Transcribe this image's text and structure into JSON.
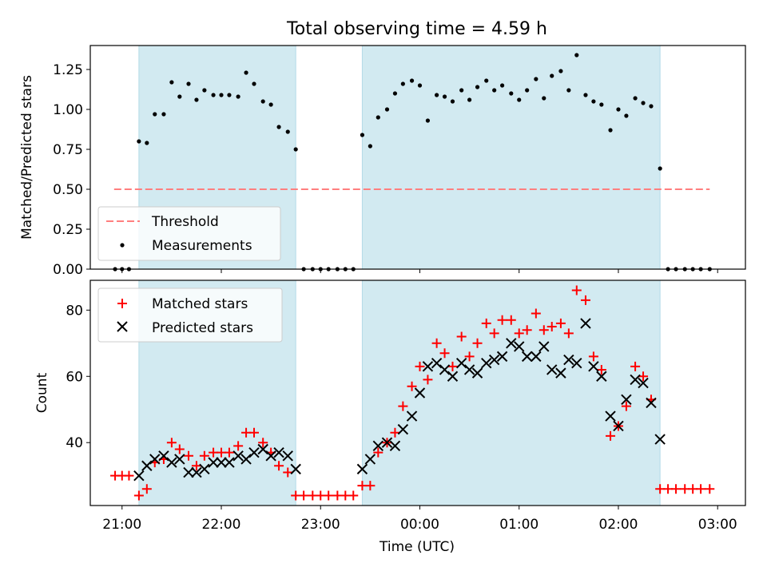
{
  "figure": {
    "title": "Total observing time = 4.59 h",
    "xlabel": "Time (UTC)",
    "band_color": "#add8e6",
    "threshold_color": "#ff7f7f",
    "matched_color": "#ff0000",
    "predicted_color": "#000000"
  },
  "chart_data": [
    {
      "type": "scatter",
      "ylabel": "Matched/Predicted stars",
      "ylim": [
        0,
        1.4
      ],
      "yticks": [
        0.0,
        0.25,
        0.5,
        0.75,
        1.0,
        1.25
      ],
      "ytick_labels": [
        "0.00",
        "0.25",
        "0.50",
        "0.75",
        "1.00",
        "1.25"
      ],
      "xlim_hours": [
        20.68,
        27.28
      ],
      "xticks_hours": [
        21,
        22,
        23,
        24,
        25,
        26,
        27
      ],
      "xtick_labels": [
        "21:00",
        "22:00",
        "23:00",
        "00:00",
        "01:00",
        "02:00",
        "03:00"
      ],
      "x_axis_note": "x values are hours UTC counted from 00:00 of the first night (24 = 00:00 next day)",
      "legend_position": "lower left",
      "shaded_intervals": [
        [
          21.17,
          22.75
        ],
        [
          23.42,
          26.42
        ]
      ],
      "threshold": {
        "name": "Threshold",
        "y": 0.5,
        "x_range": [
          20.92,
          26.92
        ]
      },
      "series": [
        {
          "name": "Measurements",
          "x": [
            20.93,
            21.0,
            21.07,
            21.17,
            21.25,
            21.33,
            21.42,
            21.5,
            21.58,
            21.67,
            21.75,
            21.83,
            21.92,
            22.0,
            22.08,
            22.17,
            22.25,
            22.33,
            22.42,
            22.5,
            22.58,
            22.67,
            22.75,
            22.83,
            22.92,
            23.0,
            23.08,
            23.17,
            23.25,
            23.33,
            23.42,
            23.5,
            23.58,
            23.67,
            23.75,
            23.83,
            23.92,
            24.0,
            24.08,
            24.17,
            24.25,
            24.33,
            24.42,
            24.5,
            24.58,
            24.67,
            24.75,
            24.83,
            24.92,
            25.0,
            25.08,
            25.17,
            25.25,
            25.33,
            25.42,
            25.5,
            25.58,
            25.67,
            25.75,
            25.83,
            25.92,
            26.0,
            26.08,
            26.17,
            26.25,
            26.33,
            26.42,
            26.5,
            26.58,
            26.67,
            26.75,
            26.83,
            26.92
          ],
          "y": [
            0,
            0,
            0,
            0.8,
            0.79,
            0.97,
            0.97,
            1.17,
            1.08,
            1.16,
            1.06,
            1.12,
            1.09,
            1.09,
            1.09,
            1.08,
            1.23,
            1.16,
            1.05,
            1.03,
            0.89,
            0.86,
            0.75,
            0,
            0,
            0,
            0,
            0,
            0,
            0,
            0.84,
            0.77,
            0.95,
            1.0,
            1.1,
            1.16,
            1.18,
            1.15,
            0.93,
            1.09,
            1.08,
            1.05,
            1.12,
            1.06,
            1.14,
            1.18,
            1.12,
            1.15,
            1.1,
            1.06,
            1.12,
            1.19,
            1.07,
            1.21,
            1.24,
            1.12,
            1.34,
            1.09,
            1.05,
            1.03,
            0.87,
            1.0,
            0.96,
            1.07,
            1.04,
            1.02,
            0.63,
            0,
            0,
            0,
            0,
            0,
            0
          ]
        }
      ]
    },
    {
      "type": "scatter",
      "ylabel": "Count",
      "ylim": [
        21,
        89
      ],
      "yticks": [
        40,
        60,
        80
      ],
      "ytick_labels": [
        "40",
        "60",
        "80"
      ],
      "xlim_hours": [
        20.68,
        27.28
      ],
      "xticks_hours": [
        21,
        22,
        23,
        24,
        25,
        26,
        27
      ],
      "xtick_labels": [
        "21:00",
        "22:00",
        "23:00",
        "00:00",
        "01:00",
        "02:00",
        "03:00"
      ],
      "x_axis_note": "x values are hours UTC counted from 00:00 of the first night (24 = 00:00 next day)",
      "legend_position": "upper left",
      "shaded_intervals": [
        [
          21.17,
          22.75
        ],
        [
          23.42,
          26.42
        ]
      ],
      "series": [
        {
          "name": "Matched stars",
          "marker": "+",
          "x": [
            20.93,
            21.0,
            21.07,
            21.17,
            21.25,
            21.33,
            21.42,
            21.5,
            21.58,
            21.67,
            21.75,
            21.83,
            21.92,
            22.0,
            22.08,
            22.17,
            22.25,
            22.33,
            22.42,
            22.5,
            22.58,
            22.67,
            22.75,
            22.83,
            22.92,
            23.0,
            23.08,
            23.17,
            23.25,
            23.33,
            23.42,
            23.5,
            23.58,
            23.67,
            23.75,
            23.83,
            23.92,
            24.0,
            24.08,
            24.17,
            24.25,
            24.33,
            24.42,
            24.5,
            24.58,
            24.67,
            24.75,
            24.83,
            24.92,
            25.0,
            25.08,
            25.17,
            25.25,
            25.33,
            25.42,
            25.5,
            25.58,
            25.67,
            25.75,
            25.83,
            25.92,
            26.0,
            26.08,
            26.17,
            26.25,
            26.33,
            26.42,
            26.5,
            26.58,
            26.67,
            26.75,
            26.83,
            26.92
          ],
          "y": [
            30,
            30,
            30,
            24,
            26,
            34,
            35,
            40,
            38,
            36,
            33,
            36,
            37,
            37,
            37,
            39,
            43,
            43,
            40,
            37,
            33,
            31,
            24,
            24,
            24,
            24,
            24,
            24,
            24,
            24,
            27,
            27,
            37,
            40,
            43,
            51,
            57,
            63,
            59,
            70,
            67,
            63,
            72,
            66,
            70,
            76,
            73,
            77,
            77,
            73,
            74,
            79,
            74,
            75,
            76,
            73,
            86,
            83,
            66,
            62,
            42,
            45,
            51,
            63,
            60,
            53,
            26,
            26,
            26,
            26,
            26,
            26,
            26
          ]
        },
        {
          "name": "Predicted stars",
          "marker": "x",
          "x": [
            21.17,
            21.25,
            21.33,
            21.42,
            21.5,
            21.58,
            21.67,
            21.75,
            21.83,
            21.92,
            22.0,
            22.08,
            22.17,
            22.25,
            22.33,
            22.42,
            22.5,
            22.58,
            22.67,
            22.75,
            23.42,
            23.5,
            23.58,
            23.67,
            23.75,
            23.83,
            23.92,
            24.0,
            24.08,
            24.17,
            24.25,
            24.33,
            24.42,
            24.5,
            24.58,
            24.67,
            24.75,
            24.83,
            24.92,
            25.0,
            25.08,
            25.17,
            25.25,
            25.33,
            25.42,
            25.5,
            25.58,
            25.67,
            25.75,
            25.83,
            25.92,
            26.0,
            26.08,
            26.17,
            26.25,
            26.33,
            26.42
          ],
          "y": [
            30,
            33,
            35,
            36,
            34,
            35,
            31,
            31,
            32,
            34,
            34,
            34,
            36,
            35,
            37,
            38,
            36,
            37,
            36,
            32,
            32,
            35,
            39,
            40,
            39,
            44,
            48,
            55,
            63,
            64,
            62,
            60,
            64,
            62,
            61,
            64,
            65,
            66,
            70,
            69,
            66,
            66,
            69,
            62,
            61,
            65,
            64,
            76,
            63,
            60,
            48,
            45,
            53,
            59,
            58,
            52,
            41
          ]
        }
      ]
    }
  ]
}
